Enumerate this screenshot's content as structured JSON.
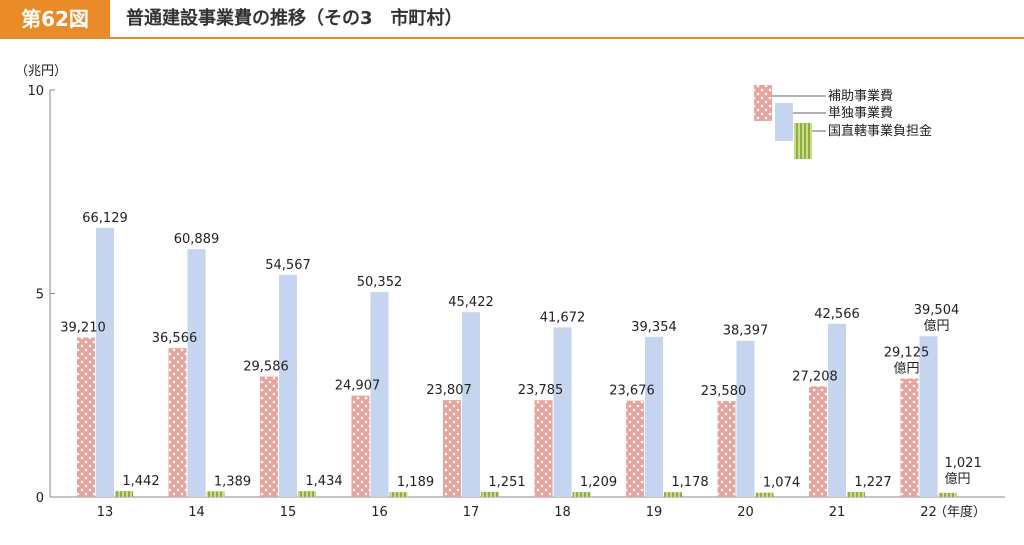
{
  "figure": {
    "number": "第62図",
    "title": "普通建設事業費の推移（その3　市町村）",
    "accent_color": "#e98b28"
  },
  "chart_data": {
    "type": "bar",
    "y_unit_label": "（兆円）",
    "x_unit_label": "（年度）",
    "ylim": [
      0,
      10
    ],
    "yticks": [
      0,
      5,
      10
    ],
    "categories": [
      "13",
      "14",
      "15",
      "16",
      "17",
      "18",
      "19",
      "20",
      "21",
      "22"
    ],
    "series": [
      {
        "name": "補助事業費",
        "color": "#e8a6a0",
        "pattern": "dots",
        "values": [
          39210,
          36566,
          29586,
          24907,
          23807,
          23785,
          23676,
          23580,
          27208,
          29125
        ],
        "labels": [
          "39,210",
          "36,566",
          "29,586",
          "24,907",
          "23,807",
          "23,785",
          "23,676",
          "23,580",
          "27,208",
          "29,125"
        ]
      },
      {
        "name": "単独事業費",
        "color": "#c5d5f0",
        "pattern": "solid",
        "values": [
          66129,
          60889,
          54567,
          50352,
          45422,
          41672,
          39354,
          38397,
          42566,
          39504
        ],
        "labels": [
          "66,129",
          "60,889",
          "54,567",
          "50,352",
          "45,422",
          "41,672",
          "39,354",
          "38,397",
          "42,566",
          "39,504"
        ]
      },
      {
        "name": "国直轄事業負担金",
        "color": "#a8c45a",
        "pattern": "stripes",
        "values": [
          1442,
          1389,
          1434,
          1189,
          1251,
          1209,
          1178,
          1074,
          1227,
          1021
        ],
        "labels": [
          "1,442",
          "1,389",
          "1,434",
          "1,189",
          "1,251",
          "1,209",
          "1,178",
          "1,074",
          "1,227",
          "1,021"
        ]
      }
    ],
    "unit_note": "億円",
    "value_scale_note": "values in 億円; 10,000億円 = 1兆円",
    "legend_position": "top-right",
    "grid": false
  }
}
